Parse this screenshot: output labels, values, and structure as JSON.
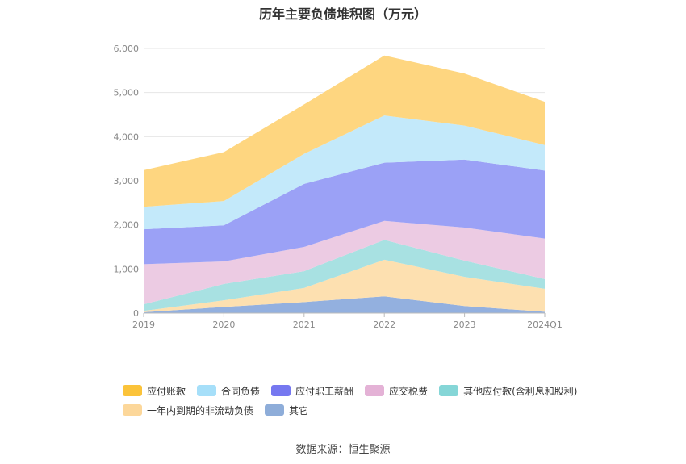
{
  "chart_data": {
    "type": "area",
    "title": "历年主要负债堆积图（万元）",
    "stacked": true,
    "categories": [
      "2019",
      "2020",
      "2021",
      "2022",
      "2023",
      "2024Q1"
    ],
    "y_ticks": [
      "0",
      "1,000",
      "2,000",
      "3,000",
      "4,000",
      "5,000",
      "6,000"
    ],
    "ylim": [
      0,
      6000
    ],
    "grid": true,
    "legend_position": "bottom",
    "series": [
      {
        "name": "其它",
        "color": "#93b0df",
        "values": [
          20,
          140,
          250,
          380,
          160,
          30
        ]
      },
      {
        "name": "一年内到期的非流动负债",
        "color": "#fde0b0",
        "values": [
          30,
          150,
          320,
          830,
          660,
          520
        ]
      },
      {
        "name": "其他应付款(含利息和股利)",
        "color": "#a8e1e2",
        "values": [
          150,
          370,
          380,
          450,
          370,
          220
        ]
      },
      {
        "name": "应交税费",
        "color": "#eccbe3",
        "values": [
          910,
          510,
          550,
          430,
          750,
          920
        ]
      },
      {
        "name": "应付职工薪酬",
        "color": "#9ba1f6",
        "values": [
          790,
          820,
          1430,
          1320,
          1540,
          1540
        ]
      },
      {
        "name": "合同负债",
        "color": "#c3e9fa",
        "values": [
          510,
          550,
          680,
          1070,
          770,
          580
        ]
      },
      {
        "name": "应付账款",
        "color": "#fed680",
        "values": [
          830,
          1110,
          1120,
          1360,
          1180,
          980
        ]
      }
    ]
  },
  "legend": {
    "row1": [
      {
        "label": "应付账款",
        "color": "#fbc33a"
      },
      {
        "label": "合同负债",
        "color": "#a6dff9"
      },
      {
        "label": "应付职工薪酬",
        "color": "#7678f0"
      },
      {
        "label": "应交税费",
        "color": "#e4b2d6"
      },
      {
        "label": "其他应付款(含利息和股利)",
        "color": "#85d6d7"
      }
    ],
    "row2": [
      {
        "label": "一年内到期的非流动负债",
        "color": "#fcd79a"
      },
      {
        "label": "其它",
        "color": "#8eadd9"
      }
    ]
  },
  "source": "数据来源：恒生聚源"
}
